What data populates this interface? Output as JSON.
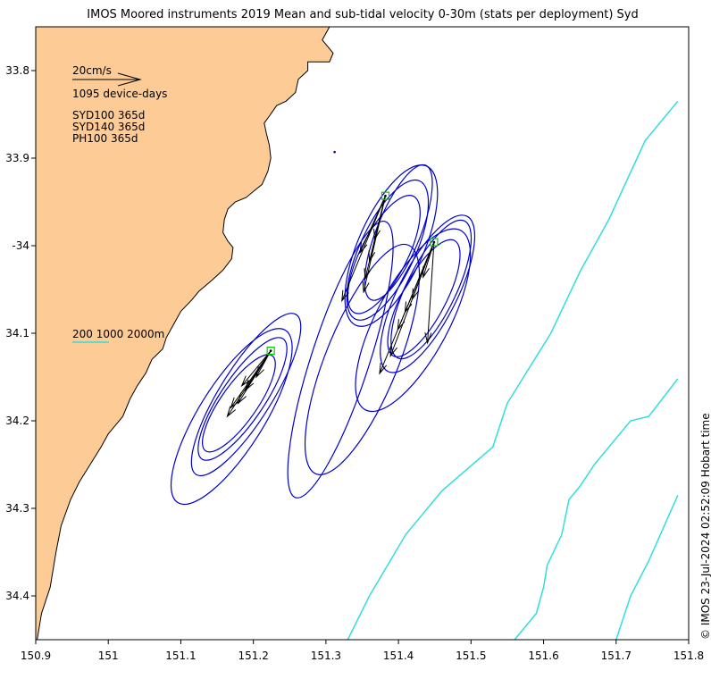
{
  "title": "IMOS Moored instruments 2019 Mean and sub-tidal velocity 0-30m (stats per deployment) Syd",
  "credit": "© IMOS 23-Jul-2024 02:52:09 Hobart time",
  "legend": {
    "scale_label": "20cm/s",
    "device_days": "1095 device-days",
    "deployments": [
      "SYD100 365d",
      "SYD140 365d",
      "PH100 365d"
    ],
    "isobath_label": "200 1000 2000m"
  },
  "colors": {
    "land": "#FDCB96",
    "coast": "#000000",
    "ellipse": "#0000CC",
    "vector": "#000000",
    "site": "#00CC00",
    "isobath": "#33DDDD"
  },
  "map_data": {
    "type": "map",
    "lon_range": [
      150.9,
      151.8
    ],
    "lat_range": [
      -34.45,
      -33.75
    ],
    "x_ticks": [
      150.9,
      151,
      151.1,
      151.2,
      151.3,
      151.4,
      151.5,
      151.6,
      151.7,
      151.8
    ],
    "x_tick_labels": [
      "150.9",
      "151",
      "151.1",
      "151.2",
      "151.3",
      "151.4",
      "151.5",
      "151.6",
      "151.7",
      "151.8"
    ],
    "y_ticks": [
      -33.8,
      -33.9,
      -34.0,
      -34.1,
      -34.2,
      -34.3,
      -34.4
    ],
    "y_tick_labels": [
      "33.8",
      "33.9",
      "-34",
      "34.1",
      "34.2",
      "34.3",
      "34.4"
    ],
    "sites": [
      {
        "lon": 151.382,
        "lat": -33.943
      },
      {
        "lon": 151.449,
        "lat": -33.996
      },
      {
        "lon": 151.224,
        "lat": -34.12
      }
    ],
    "isobaths": [
      [
        [
          151.33,
          -34.45
        ],
        [
          151.36,
          -34.4
        ],
        [
          151.41,
          -34.33
        ],
        [
          151.46,
          -34.28
        ],
        [
          151.53,
          -34.23
        ],
        [
          151.55,
          -34.18
        ],
        [
          151.61,
          -34.1
        ],
        [
          151.65,
          -34.03
        ],
        [
          151.69,
          -33.97
        ],
        [
          151.74,
          -33.88
        ],
        [
          151.785,
          -33.835
        ]
      ],
      [
        [
          151.56,
          -34.45
        ],
        [
          151.59,
          -34.42
        ],
        [
          151.6,
          -34.39
        ],
        [
          151.605,
          -34.365
        ],
        [
          151.625,
          -34.33
        ],
        [
          151.635,
          -34.29
        ],
        [
          151.65,
          -34.275
        ],
        [
          151.67,
          -34.25
        ],
        [
          151.72,
          -34.2
        ],
        [
          151.745,
          -34.195
        ],
        [
          151.785,
          -34.152
        ]
      ],
      [
        [
          151.7,
          -34.45
        ],
        [
          151.72,
          -34.4
        ],
        [
          151.745,
          -34.36
        ],
        [
          151.785,
          -34.285
        ]
      ]
    ],
    "ellipses": [
      {
        "lon": 151.385,
        "lat": -34.005,
        "a": 0.105,
        "b": 0.038,
        "angle": 65
      },
      {
        "lon": 151.39,
        "lat": -34.0,
        "a": 0.12,
        "b": 0.045,
        "angle": 66
      },
      {
        "lon": 151.38,
        "lat": -34.01,
        "a": 0.09,
        "b": 0.032,
        "angle": 63
      },
      {
        "lon": 151.4,
        "lat": -33.985,
        "a": 0.1,
        "b": 0.03,
        "angle": 68
      },
      {
        "lon": 151.44,
        "lat": -34.055,
        "a": 0.12,
        "b": 0.04,
        "angle": 63
      },
      {
        "lon": 151.435,
        "lat": -34.06,
        "a": 0.09,
        "b": 0.03,
        "angle": 62
      },
      {
        "lon": 151.445,
        "lat": -34.05,
        "a": 0.105,
        "b": 0.034,
        "angle": 64
      },
      {
        "lon": 151.42,
        "lat": -34.085,
        "a": 0.14,
        "b": 0.05,
        "angle": 62
      },
      {
        "lon": 151.185,
        "lat": -34.175,
        "a": 0.1,
        "b": 0.03,
        "angle": 56
      },
      {
        "lon": 151.19,
        "lat": -34.17,
        "a": 0.13,
        "b": 0.036,
        "angle": 58
      },
      {
        "lon": 151.18,
        "lat": -34.18,
        "a": 0.08,
        "b": 0.025,
        "angle": 55
      },
      {
        "lon": 151.17,
        "lat": -34.195,
        "a": 0.14,
        "b": 0.045,
        "angle": 58
      },
      {
        "lon": 151.32,
        "lat": -34.13,
        "a": 0.2,
        "b": 0.04,
        "angle": 72
      },
      {
        "lon": 151.35,
        "lat": -34.13,
        "a": 0.17,
        "b": 0.05,
        "angle": 68
      }
    ],
    "vectors": [
      {
        "lon": 151.382,
        "lat": -33.943,
        "u": -0.015,
        "v": -0.05
      },
      {
        "lon": 151.382,
        "lat": -33.943,
        "u": -0.022,
        "v": -0.075
      },
      {
        "lon": 151.382,
        "lat": -33.943,
        "u": -0.028,
        "v": -0.095
      },
      {
        "lon": 151.382,
        "lat": -33.943,
        "u": -0.03,
        "v": -0.11
      },
      {
        "lon": 151.382,
        "lat": -33.943,
        "u": -0.06,
        "v": -0.12
      },
      {
        "lon": 151.382,
        "lat": -33.943,
        "u": -0.035,
        "v": -0.065
      },
      {
        "lon": 151.449,
        "lat": -33.996,
        "u": -0.015,
        "v": -0.04
      },
      {
        "lon": 151.449,
        "lat": -33.996,
        "u": -0.03,
        "v": -0.065
      },
      {
        "lon": 151.449,
        "lat": -33.996,
        "u": -0.04,
        "v": -0.08
      },
      {
        "lon": 151.449,
        "lat": -33.996,
        "u": -0.05,
        "v": -0.1
      },
      {
        "lon": 151.449,
        "lat": -33.996,
        "u": -0.06,
        "v": -0.13
      },
      {
        "lon": 151.449,
        "lat": -33.996,
        "u": -0.075,
        "v": -0.15
      },
      {
        "lon": 151.449,
        "lat": -33.996,
        "u": -0.009,
        "v": -0.115
      },
      {
        "lon": 151.224,
        "lat": -34.12,
        "u": -0.02,
        "v": -0.03
      },
      {
        "lon": 151.224,
        "lat": -34.12,
        "u": -0.035,
        "v": -0.045
      },
      {
        "lon": 151.224,
        "lat": -34.12,
        "u": -0.045,
        "v": -0.06
      },
      {
        "lon": 151.224,
        "lat": -34.12,
        "u": -0.055,
        "v": -0.065
      },
      {
        "lon": 151.224,
        "lat": -34.12,
        "u": -0.06,
        "v": -0.075
      },
      {
        "lon": 151.224,
        "lat": -34.12,
        "u": -0.04,
        "v": -0.04
      }
    ],
    "coast": [
      [
        150.9,
        -33.75
      ],
      [
        151.305,
        -33.75
      ],
      [
        151.295,
        -33.765
      ],
      [
        151.31,
        -33.78
      ],
      [
        151.305,
        -33.79
      ],
      [
        151.275,
        -33.79
      ],
      [
        151.275,
        -33.8
      ],
      [
        151.262,
        -33.81
      ],
      [
        151.258,
        -33.825
      ],
      [
        151.245,
        -33.835
      ],
      [
        151.232,
        -33.84
      ],
      [
        151.222,
        -33.852
      ],
      [
        151.215,
        -33.86
      ],
      [
        151.218,
        -33.872
      ],
      [
        151.222,
        -33.885
      ],
      [
        151.224,
        -33.9
      ],
      [
        151.22,
        -33.915
      ],
      [
        151.212,
        -33.93
      ],
      [
        151.2,
        -33.938
      ],
      [
        151.19,
        -33.945
      ],
      [
        151.175,
        -33.95
      ],
      [
        151.165,
        -33.958
      ],
      [
        151.16,
        -33.97
      ],
      [
        151.158,
        -33.985
      ],
      [
        151.165,
        -33.995
      ],
      [
        151.172,
        -34.002
      ],
      [
        151.17,
        -34.015
      ],
      [
        151.158,
        -34.028
      ],
      [
        151.142,
        -34.04
      ],
      [
        151.125,
        -34.052
      ],
      [
        151.115,
        -34.062
      ],
      [
        151.1,
        -34.075
      ],
      [
        151.09,
        -34.09
      ],
      [
        151.08,
        -34.105
      ],
      [
        151.075,
        -34.118
      ],
      [
        151.06,
        -34.13
      ],
      [
        151.052,
        -34.145
      ],
      [
        151.04,
        -34.16
      ],
      [
        151.03,
        -34.175
      ],
      [
        151.02,
        -34.195
      ],
      [
        151.0,
        -34.215
      ],
      [
        150.99,
        -34.23
      ],
      [
        150.975,
        -34.25
      ],
      [
        150.96,
        -34.27
      ],
      [
        150.948,
        -34.29
      ],
      [
        150.935,
        -34.32
      ],
      [
        150.928,
        -34.35
      ],
      [
        150.92,
        -34.39
      ],
      [
        150.908,
        -34.42
      ],
      [
        150.902,
        -34.45
      ],
      [
        150.9,
        -34.45
      ]
    ]
  }
}
